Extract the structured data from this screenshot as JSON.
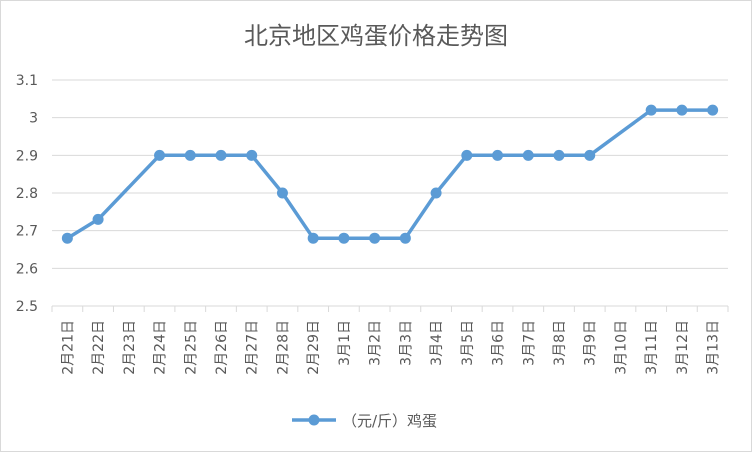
{
  "chart_data": {
    "type": "line",
    "title": "北京地区鸡蛋价格走势图",
    "xlabel": "",
    "ylabel": "",
    "ylim": [
      2.5,
      3.1
    ],
    "yticks": [
      "2.5",
      "2.6",
      "2.7",
      "2.8",
      "2.9",
      "3",
      "3.1"
    ],
    "categories": [
      "2月21日",
      "2月22日",
      "2月23日",
      "2月24日",
      "2月25日",
      "2月26日",
      "2月27日",
      "2月28日",
      "2月29日",
      "3月1日",
      "3月2日",
      "3月3日",
      "3月4日",
      "3月5日",
      "3月6日",
      "3月7日",
      "3月8日",
      "3月9日",
      "3月10日",
      "3月11日",
      "3月12日",
      "3月13日"
    ],
    "series": [
      {
        "name": "（元/斤）鸡蛋",
        "values": [
          2.68,
          2.73,
          null,
          2.9,
          2.9,
          2.9,
          2.9,
          2.8,
          2.68,
          2.68,
          2.68,
          2.68,
          2.8,
          2.9,
          2.9,
          2.9,
          2.9,
          2.9,
          null,
          3.02,
          3.02,
          3.02
        ]
      }
    ],
    "grid": true,
    "legend": "bottom",
    "color": "#5b9bd5",
    "gridColor": "#d9d9d9",
    "textColor": "#595959"
  }
}
